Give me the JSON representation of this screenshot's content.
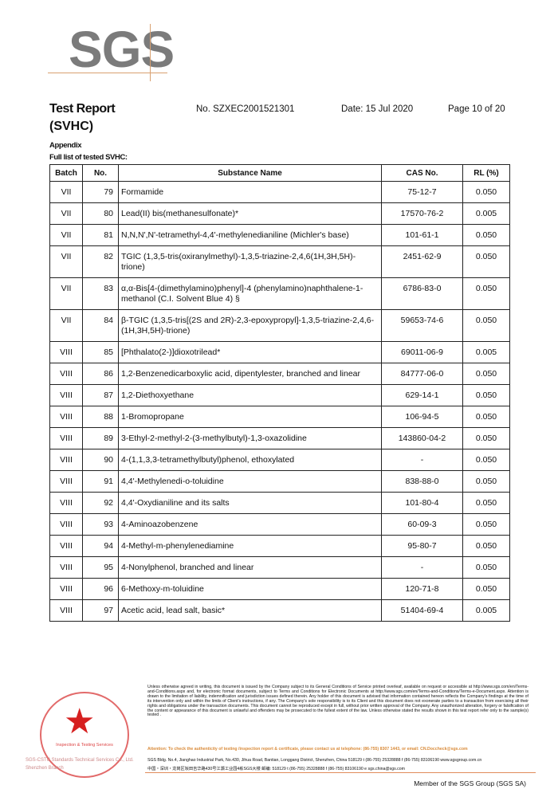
{
  "logo": "SGS",
  "header": {
    "title": "Test Report",
    "subtitle": "(SVHC)",
    "report_no": "No. SZXEC2001521301",
    "date": "Date: 15 Jul 2020",
    "page": "Page 10 of 20"
  },
  "appendix": "Appendix",
  "list_title": "Full list of tested SVHC:",
  "table": {
    "headers": [
      "Batch",
      "No.",
      "Substance Name",
      "CAS No.",
      "RL (%)"
    ],
    "rows": [
      [
        "VII",
        "79",
        "Formamide",
        "75-12-7",
        "0.050"
      ],
      [
        "VII",
        "80",
        "Lead(II) bis(methanesulfonate)*",
        "17570-76-2",
        "0.005"
      ],
      [
        "VII",
        "81",
        "N,N,N',N'-tetramethyl-4,4'-methylenedianiline (Michler's base)",
        "101-61-1",
        "0.050"
      ],
      [
        "VII",
        "82",
        "TGIC (1,3,5-tris(oxiranylmethyl)-1,3,5-triazine-2,4,6(1H,3H,5H)-trione)",
        "2451-62-9",
        "0.050"
      ],
      [
        "VII",
        "83",
        "α,α-Bis[4-(dimethylamino)phenyl]-4 (phenylamino)naphthalene-1-methanol (C.I. Solvent Blue 4) §",
        "6786-83-0",
        "0.050"
      ],
      [
        "VII",
        "84",
        "β-TGIC (1,3,5-tris[(2S and 2R)-2,3-epoxypropyl]-1,3,5-triazine-2,4,6-(1H,3H,5H)-trione)",
        "59653-74-6",
        "0.050"
      ],
      [
        "VIII",
        "85",
        "[Phthalato(2-)]dioxotrilead*",
        "69011-06-9",
        "0.005"
      ],
      [
        "VIII",
        "86",
        "1,2-Benzenedicarboxylic acid, dipentylester, branched and linear",
        "84777-06-0",
        "0.050"
      ],
      [
        "VIII",
        "87",
        "1,2-Diethoxyethane",
        "629-14-1",
        "0.050"
      ],
      [
        "VIII",
        "88",
        "1-Bromopropane",
        "106-94-5",
        "0.050"
      ],
      [
        "VIII",
        "89",
        "3-Ethyl-2-methyl-2-(3-methylbutyl)-1,3-oxazolidine",
        "143860-04-2",
        "0.050"
      ],
      [
        "VIII",
        "90",
        "4-(1,1,3,3-tetramethylbutyl)phenol, ethoxylated",
        "-",
        "0.050"
      ],
      [
        "VIII",
        "91",
        "4,4'-Methylenedi-o-toluidine",
        "838-88-0",
        "0.050"
      ],
      [
        "VIII",
        "92",
        "4,4'-Oxydianiline and its salts",
        "101-80-4",
        "0.050"
      ],
      [
        "VIII",
        "93",
        "4-Aminoazobenzene",
        "60-09-3",
        "0.050"
      ],
      [
        "VIII",
        "94",
        "4-Methyl-m-phenylenediamine",
        "95-80-7",
        "0.050"
      ],
      [
        "VIII",
        "95",
        "4-Nonylphenol, branched and linear",
        "-",
        "0.050"
      ],
      [
        "VIII",
        "96",
        "6-Methoxy-m-toluidine",
        "120-71-8",
        "0.050"
      ],
      [
        "VIII",
        "97",
        "Acetic acid, lead salt, basic*",
        "51404-69-4",
        "0.005"
      ]
    ]
  },
  "footer": {
    "stamp_text": "Inspection & Testing Services",
    "stamp_org": "SGS-CSTC Standards Technical Services Co., Ltd. Shenzhen Branch",
    "legal": "Unless otherwise agreed in writing, this document is issued by the Company subject to its General Conditions of Service printed overleaf, available on request or accessible at http://www.sgs.com/en/Terms-and-Conditions.aspx and, for electronic format documents, subject to Terms and Conditions for Electronic Documents at http://www.sgs.com/en/Terms-and-Conditions/Terms-e-Document.aspx. Attention is drawn to the limitation of liability, indemnification and jurisdiction issues defined therein. Any holder of this document is advised that information contained hereon reflects the Company's findings at the time of its intervention only and within the limits of Client's instructions, if any. The Company's sole responsibility is to its Client and this document does not exonerate parties to a transaction from exercising all their rights and obligations under the transaction documents. This document cannot be reproduced except in full, without prior written approval of the Company. Any unauthorized alteration, forgery or falsification of the content or appearance of this document is unlawful and offenders may be prosecuted to the fullest extent of the law. Unless otherwise stated the results shown in this test report refer only to the sample(s) tested .",
    "attention": "Attention: To check the authenticity of testing /inspection report & certificate, please contact us at telephone: (86-755) 8307 1443, or email: CN.Doccheck@sgs.com",
    "address_en": "SGS Bldg. No.4, Jianghao Industrial Park, No.430, Jihua Road, Bantian, Longgang District, Shenzhen, China 518129   t (86-755) 25328888   f (86-755) 83106190   www.sgsgroup.com.cn",
    "address_cn": "中国・深圳・龙岗区坂田吉华路430号江灏工业园4栋SGS大楼   邮编: 518129   t (86-755) 25328888   f (86-755) 83106190   e sgs.china@sgs.com",
    "member": "Member of the SGS Group (SGS SA)"
  }
}
